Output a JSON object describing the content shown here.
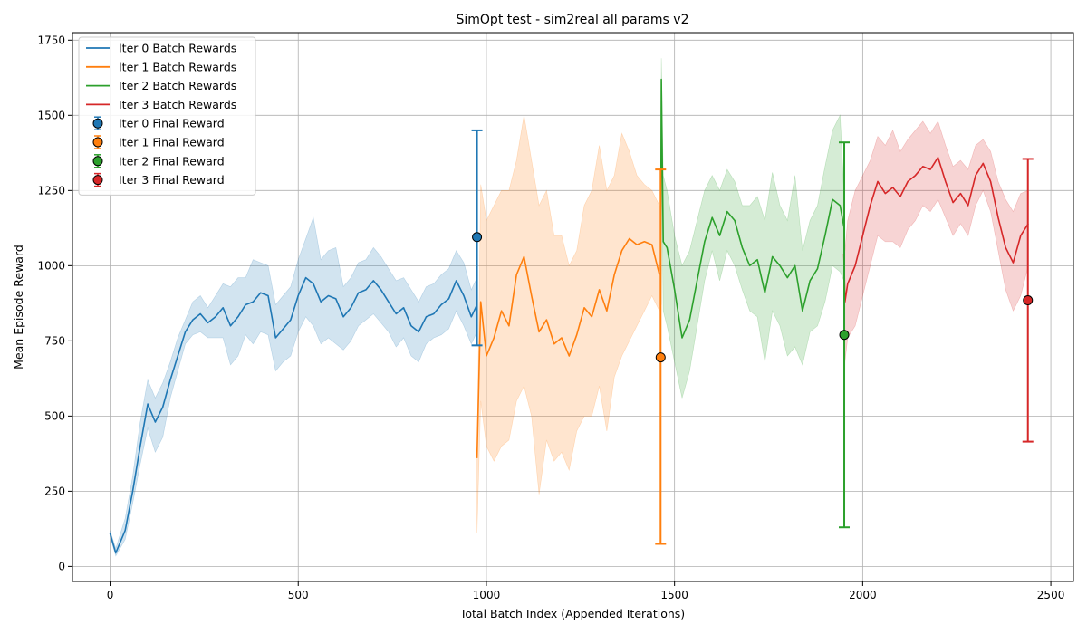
{
  "chart_data": {
    "type": "line",
    "title": "SimOpt test - sim2real all params v2",
    "xlabel": "Total Batch Index (Appended Iterations)",
    "ylabel": "Mean Episode Reward",
    "xlim": [
      -100,
      2560
    ],
    "ylim": [
      -50,
      1775
    ],
    "xticks": [
      0,
      500,
      1000,
      1500,
      2000,
      2500
    ],
    "yticks": [
      0,
      250,
      500,
      750,
      1000,
      1250,
      1500,
      1750
    ],
    "grid": true,
    "legend_position": "upper-left",
    "series": [
      {
        "name": "Iter 0 Batch Rewards",
        "color": "#1f77b4",
        "x": [
          0,
          15,
          40,
          60,
          80,
          100,
          120,
          140,
          160,
          180,
          200,
          220,
          240,
          260,
          280,
          300,
          320,
          340,
          360,
          380,
          400,
          420,
          440,
          460,
          480,
          500,
          520,
          540,
          560,
          580,
          600,
          620,
          640,
          660,
          680,
          700,
          720,
          740,
          760,
          780,
          800,
          820,
          840,
          860,
          880,
          900,
          920,
          940,
          960,
          975
        ],
        "y": [
          110,
          45,
          120,
          250,
          400,
          540,
          480,
          530,
          620,
          700,
          780,
          820,
          840,
          810,
          830,
          860,
          800,
          830,
          870,
          880,
          910,
          900,
          760,
          790,
          820,
          900,
          960,
          940,
          880,
          900,
          890,
          830,
          860,
          910,
          920,
          950,
          920,
          880,
          840,
          860,
          800,
          780,
          830,
          840,
          870,
          890,
          950,
          900,
          830,
          870
        ],
        "band_upper": [
          120,
          60,
          160,
          300,
          480,
          620,
          560,
          610,
          680,
          760,
          820,
          880,
          900,
          860,
          900,
          940,
          930,
          960,
          960,
          1020,
          1010,
          1000,
          870,
          900,
          930,
          1020,
          1090,
          1160,
          1020,
          1050,
          1060,
          930,
          960,
          1010,
          1020,
          1060,
          1030,
          990,
          950,
          960,
          920,
          880,
          930,
          940,
          970,
          990,
          1050,
          1010,
          920,
          960
        ],
        "band_lower": [
          100,
          35,
          90,
          210,
          340,
          460,
          380,
          430,
          560,
          650,
          740,
          770,
          780,
          760,
          760,
          760,
          670,
          700,
          770,
          740,
          780,
          770,
          650,
          680,
          700,
          780,
          830,
          800,
          740,
          760,
          740,
          720,
          750,
          800,
          820,
          840,
          810,
          780,
          730,
          760,
          700,
          680,
          740,
          760,
          770,
          790,
          850,
          800,
          740,
          780
        ]
      },
      {
        "name": "Iter 1 Batch Rewards",
        "color": "#ff7f0e",
        "x": [
          975,
          985,
          1000,
          1020,
          1040,
          1060,
          1080,
          1100,
          1120,
          1140,
          1160,
          1180,
          1200,
          1220,
          1240,
          1260,
          1280,
          1300,
          1320,
          1340,
          1360,
          1380,
          1400,
          1420,
          1440,
          1460
        ],
        "y": [
          360,
          880,
          700,
          760,
          850,
          800,
          970,
          1030,
          900,
          780,
          820,
          740,
          760,
          700,
          770,
          860,
          830,
          920,
          850,
          970,
          1050,
          1090,
          1070,
          1080,
          1070,
          970
        ],
        "band_upper": [
          370,
          1270,
          1150,
          1200,
          1250,
          1250,
          1350,
          1500,
          1350,
          1200,
          1250,
          1100,
          1100,
          1000,
          1050,
          1200,
          1250,
          1400,
          1250,
          1300,
          1440,
          1380,
          1300,
          1270,
          1250,
          1200
        ],
        "band_lower": [
          110,
          550,
          400,
          350,
          400,
          420,
          550,
          600,
          500,
          240,
          420,
          350,
          380,
          320,
          450,
          500,
          500,
          600,
          450,
          630,
          700,
          750,
          800,
          850,
          900,
          850
        ]
      },
      {
        "name": "Iter 2 Batch Rewards",
        "color": "#2ca02c",
        "x": [
          1463,
          1465,
          1470,
          1480,
          1500,
          1520,
          1540,
          1560,
          1580,
          1600,
          1620,
          1640,
          1660,
          1680,
          1700,
          1720,
          1740,
          1760,
          1780,
          1800,
          1820,
          1840,
          1860,
          1880,
          1900,
          1920,
          1940,
          1950
        ],
        "y": [
          870,
          1620,
          1080,
          1060,
          920,
          760,
          820,
          950,
          1080,
          1160,
          1100,
          1180,
          1150,
          1060,
          1000,
          1020,
          910,
          1030,
          1000,
          960,
          1000,
          850,
          950,
          990,
          1100,
          1220,
          1200,
          1130
        ],
        "band_upper": [
          1200,
          1690,
          1300,
          1250,
          1100,
          1000,
          1050,
          1150,
          1250,
          1300,
          1250,
          1320,
          1280,
          1200,
          1200,
          1230,
          1150,
          1310,
          1200,
          1150,
          1300,
          1050,
          1150,
          1200,
          1330,
          1450,
          1500,
          1250
        ],
        "band_lower": [
          620,
          1400,
          850,
          800,
          680,
          560,
          650,
          800,
          950,
          1050,
          950,
          1050,
          1000,
          920,
          850,
          830,
          680,
          850,
          800,
          700,
          730,
          670,
          780,
          800,
          880,
          1000,
          980,
          950
        ]
      },
      {
        "name": "Iter 3 Batch Rewards",
        "color": "#d62728",
        "x": [
          1950,
          1953,
          1960,
          1980,
          2000,
          2020,
          2040,
          2060,
          2080,
          2100,
          2120,
          2140,
          2160,
          2180,
          2200,
          2220,
          2240,
          2260,
          2280,
          2300,
          2320,
          2340,
          2360,
          2380,
          2400,
          2420,
          2440
        ],
        "y": [
          1040,
          880,
          940,
          1000,
          1100,
          1200,
          1280,
          1240,
          1260,
          1230,
          1280,
          1300,
          1330,
          1320,
          1360,
          1280,
          1210,
          1240,
          1200,
          1300,
          1340,
          1280,
          1160,
          1060,
          1010,
          1100,
          1140
        ],
        "band_upper": [
          1050,
          1050,
          1150,
          1250,
          1300,
          1350,
          1430,
          1400,
          1450,
          1380,
          1420,
          1450,
          1480,
          1440,
          1480,
          1400,
          1330,
          1350,
          1320,
          1400,
          1420,
          1380,
          1280,
          1220,
          1180,
          1240,
          1250
        ],
        "band_lower": [
          240,
          680,
          760,
          800,
          900,
          1000,
          1100,
          1080,
          1080,
          1060,
          1120,
          1150,
          1200,
          1180,
          1220,
          1160,
          1100,
          1140,
          1100,
          1200,
          1250,
          1180,
          1050,
          920,
          850,
          900,
          1000
        ]
      }
    ],
    "final_rewards": [
      {
        "name": "Iter 0 Final Reward",
        "color": "#1f77b4",
        "x": 975,
        "y": 1095,
        "err_low": 735,
        "err_high": 1450
      },
      {
        "name": "Iter 1 Final Reward",
        "color": "#ff7f0e",
        "x": 1463,
        "y": 695,
        "err_low": 75,
        "err_high": 1320
      },
      {
        "name": "Iter 2 Final Reward",
        "color": "#2ca02c",
        "x": 1951,
        "y": 770,
        "err_low": 130,
        "err_high": 1410
      },
      {
        "name": "Iter 3 Final Reward",
        "color": "#d62728",
        "x": 2439,
        "y": 885,
        "err_low": 415,
        "err_high": 1355
      }
    ]
  }
}
